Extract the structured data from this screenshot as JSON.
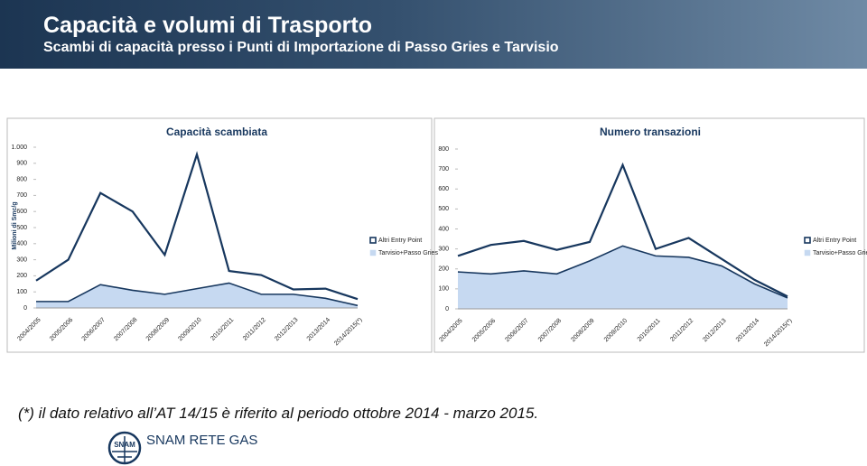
{
  "header": {
    "title": "Capacità e volumi di Trasporto",
    "subtitle": "Scambi di capacità presso i Punti di Importazione di Passo Gries e Tarvisio"
  },
  "footnote": "(*) il dato relativo all’AT 14/15 è riferito al periodo ottobre 2014 - marzo 2015.",
  "logo": {
    "mark": "SNAM",
    "name": "SNAM RETE GAS"
  },
  "chart_data": [
    {
      "type": "area",
      "stacked": true,
      "title": "Capacità scambiata",
      "y_label": "Milioni di Smc/g",
      "categories": [
        "2004/2005",
        "2005/2006",
        "2006/2007",
        "2007/2008",
        "2008/2009",
        "2009/2010",
        "2010/2011",
        "2011/2012",
        "2012/2013",
        "2013/2014",
        "2014/2015(*)"
      ],
      "series": [
        {
          "name": "Altri Entry Point",
          "color": "#17375e",
          "values": [
            130,
            260,
            570,
            490,
            245,
            835,
            75,
            120,
            30,
            60,
            40
          ]
        },
        {
          "name": "Tarvisio+Passo Gries",
          "color": "#c6d9f1",
          "values": [
            40,
            40,
            145,
            110,
            85,
            120,
            155,
            85,
            85,
            60,
            15
          ]
        }
      ],
      "ylim": [
        0,
        1000
      ],
      "yticks": [
        0,
        100,
        200,
        300,
        400,
        500,
        600,
        700,
        800,
        900,
        {
          "value": 1000,
          "label": "1.000"
        }
      ],
      "grid": false,
      "legend": "right"
    },
    {
      "type": "area",
      "stacked": true,
      "title": "Numero transazioni",
      "categories": [
        "2004/2005",
        "2005/2006",
        "2006/2007",
        "2007/2008",
        "2008/2009",
        "2009/2010",
        "2010/2011",
        "2011/2012",
        "2012/2013",
        "2013/2014",
        "2014/2015(*)"
      ],
      "series": [
        {
          "name": "Altri Entry Point",
          "color": "#17375e",
          "values": [
            80,
            145,
            150,
            120,
            95,
            405,
            35,
            97,
            35,
            20,
            7
          ]
        },
        {
          "name": "Tarvisio+Passo Gries",
          "color": "#c6d9f1",
          "values": [
            185,
            175,
            190,
            175,
            240,
            315,
            265,
            258,
            215,
            125,
            55
          ]
        }
      ],
      "ylim": [
        0,
        800
      ],
      "yticks": [
        0,
        100,
        200,
        300,
        400,
        500,
        600,
        700,
        800
      ],
      "grid": false,
      "legend": "right"
    }
  ]
}
